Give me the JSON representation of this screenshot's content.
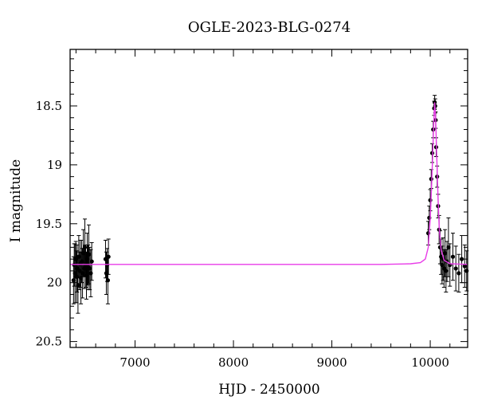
{
  "chart_data": {
    "type": "scatter",
    "title": "OGLE-2023-BLG-0274",
    "xlabel": "HJD - 2450000",
    "ylabel": "I magnitude",
    "xlim": [
      6340,
      10380
    ],
    "ylim": [
      20.55,
      18.02
    ],
    "y_inverted": true,
    "grid": false,
    "xticks": [
      7000,
      8000,
      9000,
      10000
    ],
    "xtick_labels": [
      "7000",
      "8000",
      "9000",
      "10000"
    ],
    "yticks": [
      18.5,
      19,
      19.5,
      20,
      20.5
    ],
    "ytick_labels": [
      "18.5",
      "19",
      "19.5",
      "20",
      "20.5"
    ],
    "series": [
      {
        "style": "errorbar-points",
        "color": "#000000",
        "points": [
          [
            6375,
            19.98,
            0.2
          ],
          [
            6382,
            19.85,
            0.18
          ],
          [
            6390,
            19.92,
            0.25
          ],
          [
            6398,
            19.8,
            0.15
          ],
          [
            6405,
            19.95,
            0.22
          ],
          [
            6412,
            19.88,
            0.2
          ],
          [
            6420,
            20.02,
            0.24
          ],
          [
            6428,
            19.78,
            0.18
          ],
          [
            6435,
            19.9,
            0.16
          ],
          [
            6443,
            19.84,
            0.2
          ],
          [
            6450,
            19.96,
            0.22
          ],
          [
            6458,
            19.82,
            0.18
          ],
          [
            6466,
            19.92,
            0.21
          ],
          [
            6474,
            19.75,
            0.2
          ],
          [
            6482,
            19.88,
            0.17
          ],
          [
            6490,
            19.7,
            0.24
          ],
          [
            6498,
            19.86,
            0.18
          ],
          [
            6506,
            19.94,
            0.2
          ],
          [
            6514,
            19.8,
            0.22
          ],
          [
            6522,
            19.87,
            0.19
          ],
          [
            6530,
            19.76,
            0.25
          ],
          [
            6540,
            19.88,
            0.18
          ],
          [
            6550,
            19.92,
            0.2
          ],
          [
            6560,
            19.82,
            0.16
          ],
          [
            6700,
            19.8,
            0.16
          ],
          [
            6708,
            19.92,
            0.18
          ],
          [
            6716,
            19.85,
            0.14
          ],
          [
            6724,
            19.98,
            0.2
          ],
          [
            6730,
            19.78,
            0.15
          ],
          [
            9980,
            19.58,
            0.1
          ],
          [
            9990,
            19.45,
            0.1
          ],
          [
            10000,
            19.3,
            0.09
          ],
          [
            10010,
            19.12,
            0.08
          ],
          [
            10020,
            18.9,
            0.08
          ],
          [
            10030,
            18.7,
            0.07
          ],
          [
            10040,
            18.52,
            0.06
          ],
          [
            10045,
            18.47,
            0.06
          ],
          [
            10050,
            18.5,
            0.06
          ],
          [
            10055,
            18.62,
            0.07
          ],
          [
            10060,
            18.85,
            0.08
          ],
          [
            10070,
            19.1,
            0.09
          ],
          [
            10080,
            19.35,
            0.1
          ],
          [
            10090,
            19.55,
            0.12
          ],
          [
            10100,
            19.7,
            0.14
          ],
          [
            10110,
            19.78,
            0.15
          ],
          [
            10120,
            19.85,
            0.16
          ],
          [
            10130,
            19.8,
            0.18
          ],
          [
            10140,
            19.88,
            0.16
          ],
          [
            10150,
            19.75,
            0.2
          ],
          [
            10160,
            19.9,
            0.18
          ],
          [
            10170,
            19.82,
            0.17
          ],
          [
            10185,
            19.7,
            0.25
          ],
          [
            10200,
            19.85,
            0.18
          ],
          [
            10230,
            19.78,
            0.2
          ],
          [
            10260,
            19.88,
            0.19
          ],
          [
            10290,
            19.92,
            0.16
          ],
          [
            10320,
            19.8,
            0.2
          ],
          [
            10350,
            19.86,
            0.18
          ],
          [
            10370,
            19.9,
            0.17
          ]
        ]
      },
      {
        "style": "model-line",
        "color": "#e83ce8",
        "baseline": 19.845,
        "peak": 18.47,
        "t0": 10045,
        "tE": 40,
        "points": [
          [
            6340,
            19.845
          ],
          [
            9500,
            19.845
          ],
          [
            9800,
            19.84
          ],
          [
            9900,
            19.83
          ],
          [
            9950,
            19.8
          ],
          [
            9980,
            19.7
          ],
          [
            10000,
            19.45
          ],
          [
            10015,
            19.15
          ],
          [
            10025,
            18.9
          ],
          [
            10035,
            18.65
          ],
          [
            10045,
            18.47
          ],
          [
            10055,
            18.62
          ],
          [
            10065,
            18.9
          ],
          [
            10078,
            19.25
          ],
          [
            10092,
            19.55
          ],
          [
            10110,
            19.72
          ],
          [
            10140,
            19.81
          ],
          [
            10200,
            19.84
          ],
          [
            10380,
            19.845
          ]
        ]
      }
    ]
  }
}
